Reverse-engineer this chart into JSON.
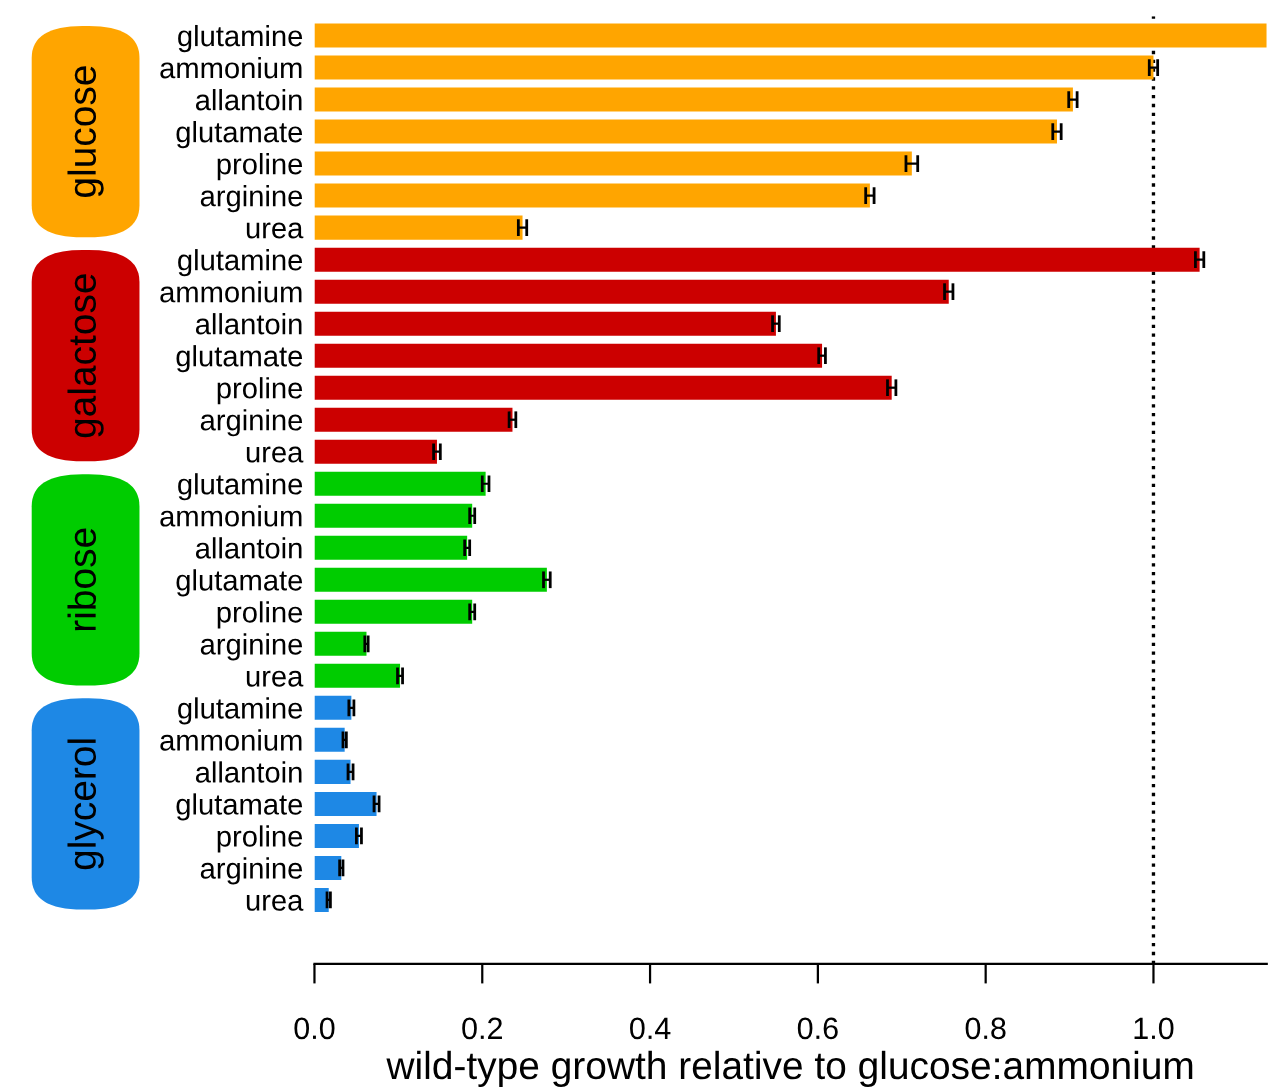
{
  "chart_data": {
    "type": "bar",
    "orientation": "horizontal",
    "xlabel": "wild-type growth relative to glucose:ammonium",
    "categories": [
      "glutamine",
      "ammonium",
      "allantoin",
      "glutamate",
      "proline",
      "arginine",
      "urea",
      "glutamine",
      "ammonium",
      "allantoin",
      "glutamate",
      "proline",
      "arginine",
      "urea",
      "glutamine",
      "ammonium",
      "allantoin",
      "glutamate",
      "proline",
      "arginine",
      "urea",
      "glutamine",
      "ammonium",
      "allantoin",
      "glutamate",
      "proline",
      "arginine",
      "urea"
    ],
    "annotations": [
      "glucose",
      "galactose",
      "ribose",
      "glycerol"
    ],
    "series": [
      {
        "color": "#ffa500",
        "values": [
          1.135,
          1.0,
          0.904,
          0.885,
          0.712,
          0.662,
          0.248,
          null,
          null,
          null,
          null,
          null,
          null,
          null,
          null,
          null,
          null,
          null,
          null,
          null,
          null,
          null,
          null,
          null,
          null,
          null,
          null,
          null
        ],
        "errors": [
          null,
          0.005,
          0.005,
          0.005,
          0.007,
          0.005,
          0.005,
          null,
          null,
          null,
          null,
          null,
          null,
          null,
          null,
          null,
          null,
          null,
          null,
          null,
          null,
          null,
          null,
          null,
          null,
          null,
          null,
          null
        ]
      },
      {
        "color": "#cc0000",
        "values": [
          null,
          null,
          null,
          null,
          null,
          null,
          null,
          1.055,
          0.756,
          0.55,
          0.605,
          0.688,
          0.236,
          0.146,
          null,
          null,
          null,
          null,
          null,
          null,
          null,
          null,
          null,
          null,
          null,
          null,
          null,
          null
        ],
        "errors": [
          null,
          null,
          null,
          null,
          null,
          null,
          null,
          0.005,
          0.005,
          0.004,
          0.004,
          0.005,
          0.004,
          0.004,
          null,
          null,
          null,
          null,
          null,
          null,
          null,
          null,
          null,
          null,
          null,
          null,
          null,
          null
        ]
      },
      {
        "color": "#00cc00",
        "values": [
          null,
          null,
          null,
          null,
          null,
          null,
          null,
          null,
          null,
          null,
          null,
          null,
          null,
          null,
          0.204,
          0.188,
          0.182,
          0.277,
          0.188,
          0.062,
          0.102,
          null,
          null,
          null,
          null,
          null,
          null,
          null
        ],
        "errors": [
          null,
          null,
          null,
          null,
          null,
          null,
          null,
          null,
          null,
          null,
          null,
          null,
          null,
          null,
          0.004,
          0.003,
          0.003,
          0.004,
          0.003,
          0.002,
          0.003,
          null,
          null,
          null,
          null,
          null,
          null,
          null
        ]
      },
      {
        "color": "#1e88e5",
        "values": [
          null,
          null,
          null,
          null,
          null,
          null,
          null,
          null,
          null,
          null,
          null,
          null,
          null,
          null,
          null,
          null,
          null,
          null,
          null,
          null,
          null,
          0.044,
          0.036,
          0.043,
          0.074,
          0.053,
          0.032,
          0.017
        ],
        "errors": [
          null,
          null,
          null,
          null,
          null,
          null,
          null,
          null,
          null,
          null,
          null,
          null,
          null,
          null,
          null,
          null,
          null,
          null,
          null,
          null,
          null,
          0.003,
          0.002,
          0.003,
          0.003,
          0.003,
          0.002,
          0.002
        ]
      }
    ],
    "xlim": [
      0,
      1.135
    ],
    "xticks": [
      {
        "value": 0,
        "label": "0.0"
      },
      {
        "value": 0.2,
        "label": "0.2"
      },
      {
        "value": 0.4,
        "label": "0.4"
      },
      {
        "value": 0.6,
        "label": "0.6"
      },
      {
        "value": 0.8,
        "label": "0.8"
      },
      {
        "value": 1.0,
        "label": "1.0"
      }
    ],
    "ref_lines": [
      {
        "axis": "x",
        "value": 1.0,
        "line_style": "dotted",
        "color": "#000000"
      }
    ],
    "grid": false,
    "legend": false
  }
}
